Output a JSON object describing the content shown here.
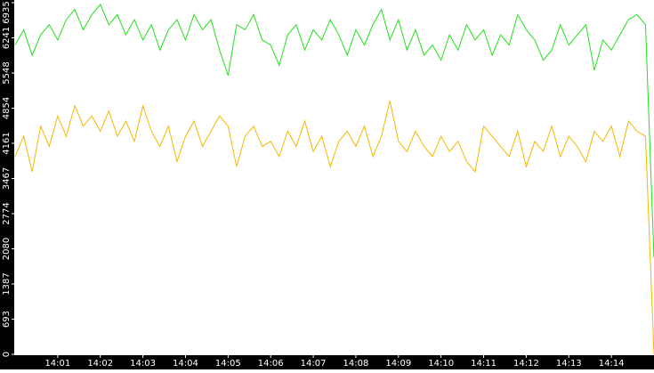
{
  "chart_data": {
    "type": "line",
    "x": [
      840.0,
      840.2,
      840.4,
      840.6,
      840.8,
      841.0,
      841.2,
      841.4,
      841.6,
      841.8,
      842.0,
      842.2,
      842.4,
      842.6,
      842.8,
      843.0,
      843.2,
      843.4,
      843.6,
      843.8,
      844.0,
      844.2,
      844.4,
      844.6,
      844.8,
      845.0,
      845.2,
      845.4,
      845.6,
      845.8,
      846.0,
      846.2,
      846.4,
      846.6,
      846.8,
      847.0,
      847.2,
      847.4,
      847.6,
      847.8,
      848.0,
      848.2,
      848.4,
      848.6,
      848.8,
      849.0,
      849.2,
      849.4,
      849.6,
      849.8,
      850.0,
      850.2,
      850.4,
      850.6,
      850.8,
      851.0,
      851.2,
      851.4,
      851.6,
      851.8,
      852.0,
      852.2,
      852.4,
      852.6,
      852.8,
      853.0,
      853.2,
      853.4,
      853.6,
      853.8,
      854.0,
      854.2,
      854.4,
      854.6,
      854.8,
      855.0
    ],
    "series": [
      {
        "color": "#22e01c",
        "values": [
          6100,
          6400,
          5900,
          6300,
          6500,
          6200,
          6600,
          6800,
          6400,
          6700,
          6900,
          6500,
          6700,
          6300,
          6600,
          6200,
          6500,
          6000,
          6400,
          6600,
          6200,
          6700,
          6400,
          6600,
          6000,
          5500,
          6500,
          6400,
          6700,
          6200,
          6100,
          5700,
          6300,
          6500,
          6000,
          6400,
          6200,
          6600,
          6300,
          5900,
          6400,
          6100,
          6500,
          6800,
          6200,
          6600,
          6000,
          6400,
          5900,
          6100,
          5800,
          6300,
          6000,
          6500,
          6200,
          6400,
          5900,
          6300,
          6100,
          6700,
          6400,
          6200,
          5800,
          6000,
          6500,
          6100,
          6300,
          6500,
          5600,
          6200,
          6000,
          6300,
          6600,
          6700,
          6500,
          1900
        ]
      },
      {
        "color": "#f5b800",
        "values": [
          3900,
          4300,
          3600,
          4500,
          4100,
          4700,
          4300,
          4900,
          4500,
          4700,
          4400,
          4800,
          4300,
          4600,
          4200,
          4900,
          4400,
          4100,
          4500,
          3800,
          4300,
          4600,
          4100,
          4400,
          4700,
          4500,
          3700,
          4300,
          4500,
          4100,
          4200,
          3900,
          4400,
          4100,
          4600,
          4000,
          4300,
          3700,
          4200,
          4400,
          4100,
          4500,
          3900,
          4300,
          5000,
          4200,
          4000,
          4400,
          4100,
          3900,
          4300,
          4000,
          4200,
          3800,
          3600,
          4500,
          4300,
          4100,
          3900,
          4400,
          3700,
          4200,
          4000,
          4500,
          3900,
          4300,
          4100,
          3800,
          4400,
          4200,
          4500,
          3900,
          4600,
          4400,
          4300,
          0
        ]
      }
    ],
    "xlim": [
      840,
      855
    ],
    "xticks": [
      {
        "value": 841,
        "label": "14:01"
      },
      {
        "value": 842,
        "label": "14:02"
      },
      {
        "value": 843,
        "label": "14:03"
      },
      {
        "value": 844,
        "label": "14:04"
      },
      {
        "value": 845,
        "label": "14:05"
      },
      {
        "value": 846,
        "label": "14:06"
      },
      {
        "value": 847,
        "label": "14:07"
      },
      {
        "value": 848,
        "label": "14:08"
      },
      {
        "value": 849,
        "label": "14:09"
      },
      {
        "value": 850,
        "label": "14:10"
      },
      {
        "value": 851,
        "label": "14:11"
      },
      {
        "value": 852,
        "label": "14:12"
      },
      {
        "value": 853,
        "label": "14:13"
      },
      {
        "value": 854,
        "label": "14:14"
      }
    ],
    "ylim": [
      0,
      6935
    ],
    "yticks": [
      0,
      693,
      1387,
      2080,
      2774,
      3467,
      4161,
      4854,
      5548,
      6241,
      6935
    ]
  }
}
